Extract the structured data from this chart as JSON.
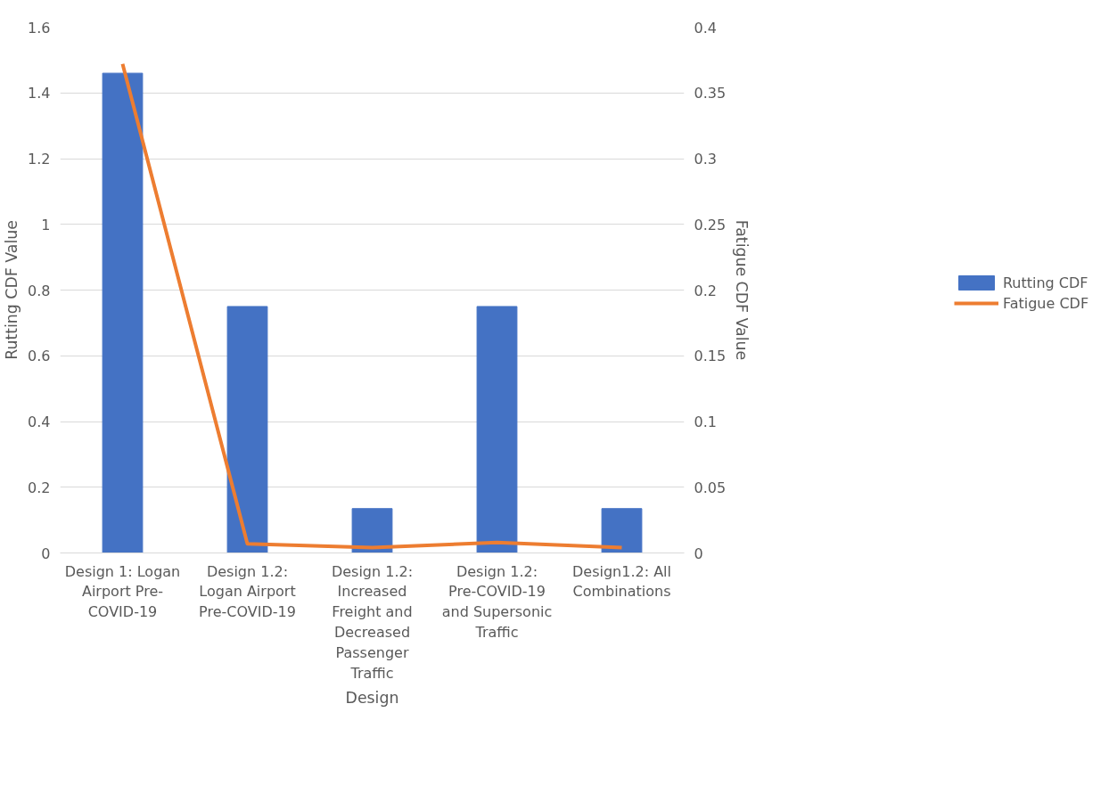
{
  "chart_data": {
    "type": "bar",
    "xlabel": "Design",
    "ylabel": "Rutting CDF Value",
    "y2label": "Fatigue CDF Value",
    "categories": [
      "Design 1: Logan Airport Pre-COVID-19",
      "Design 1.2: Logan Airport Pre-COVID-19",
      "Design 1.2: Increased Freight and Decreased Passenger Traffic",
      "Design 1.2: Pre-COVID-19 and Supersonic Traffic",
      "Design1.2: All Combinations"
    ],
    "series": [
      {
        "name": "Rutting CDF",
        "color": "#4472c4",
        "values": [
          1.46,
          0.75,
          0.135,
          0.75,
          0.135
        ]
      },
      {
        "name": "Fatigue CDF",
        "type": "line",
        "axis": "y2",
        "color": "#ed7d31",
        "values": [
          0.372,
          0.007,
          0.004,
          0.008,
          0.004
        ]
      }
    ],
    "ylim": [
      0,
      1.6
    ],
    "yticks": [
      0,
      0.2,
      0.4,
      0.6,
      0.8,
      1,
      1.2,
      1.4,
      1.6
    ],
    "y2lim": [
      0,
      0.4
    ],
    "y2ticks": [
      0,
      0.05,
      0.1,
      0.15,
      0.2,
      0.25,
      0.3,
      0.35,
      0.4
    ],
    "grid": "y",
    "legend": "right",
    "marker": "none",
    "line_style": "solid"
  }
}
